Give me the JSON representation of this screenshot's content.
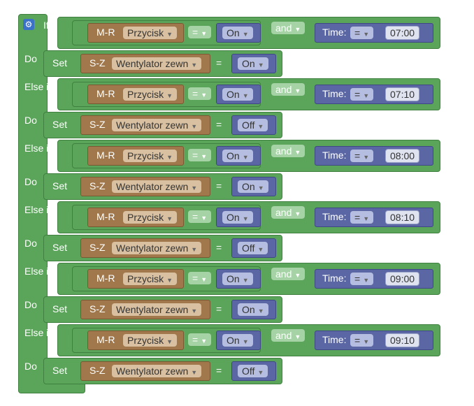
{
  "keywords": {
    "if": "If",
    "else_if": "Else if",
    "do": "Do",
    "set": "Set",
    "and": "and",
    "time": "Time:"
  },
  "labels": {
    "mr": "M-R",
    "sz": "S-Z",
    "przycisk": "Przycisk",
    "wentylator": "Wentylator zewn",
    "eq": "=",
    "on": "On"
  },
  "rows": [
    {
      "cond_keyword": "If",
      "time": "07:00",
      "set_value": "On"
    },
    {
      "cond_keyword": "Else if",
      "time": "07:10",
      "set_value": "Off"
    },
    {
      "cond_keyword": "Else if",
      "time": "08:00",
      "set_value": "On"
    },
    {
      "cond_keyword": "Else if",
      "time": "08:10",
      "set_value": "Off"
    },
    {
      "cond_keyword": "Else if",
      "time": "09:00",
      "set_value": "On"
    },
    {
      "cond_keyword": "Else if",
      "time": "09:10",
      "set_value": "Off"
    }
  ],
  "colors": {
    "logic_green": "#5ba55b",
    "variable_brown": "#a0784c",
    "value_purple": "#5b67a5",
    "settings_blue": "#3b72c7"
  }
}
